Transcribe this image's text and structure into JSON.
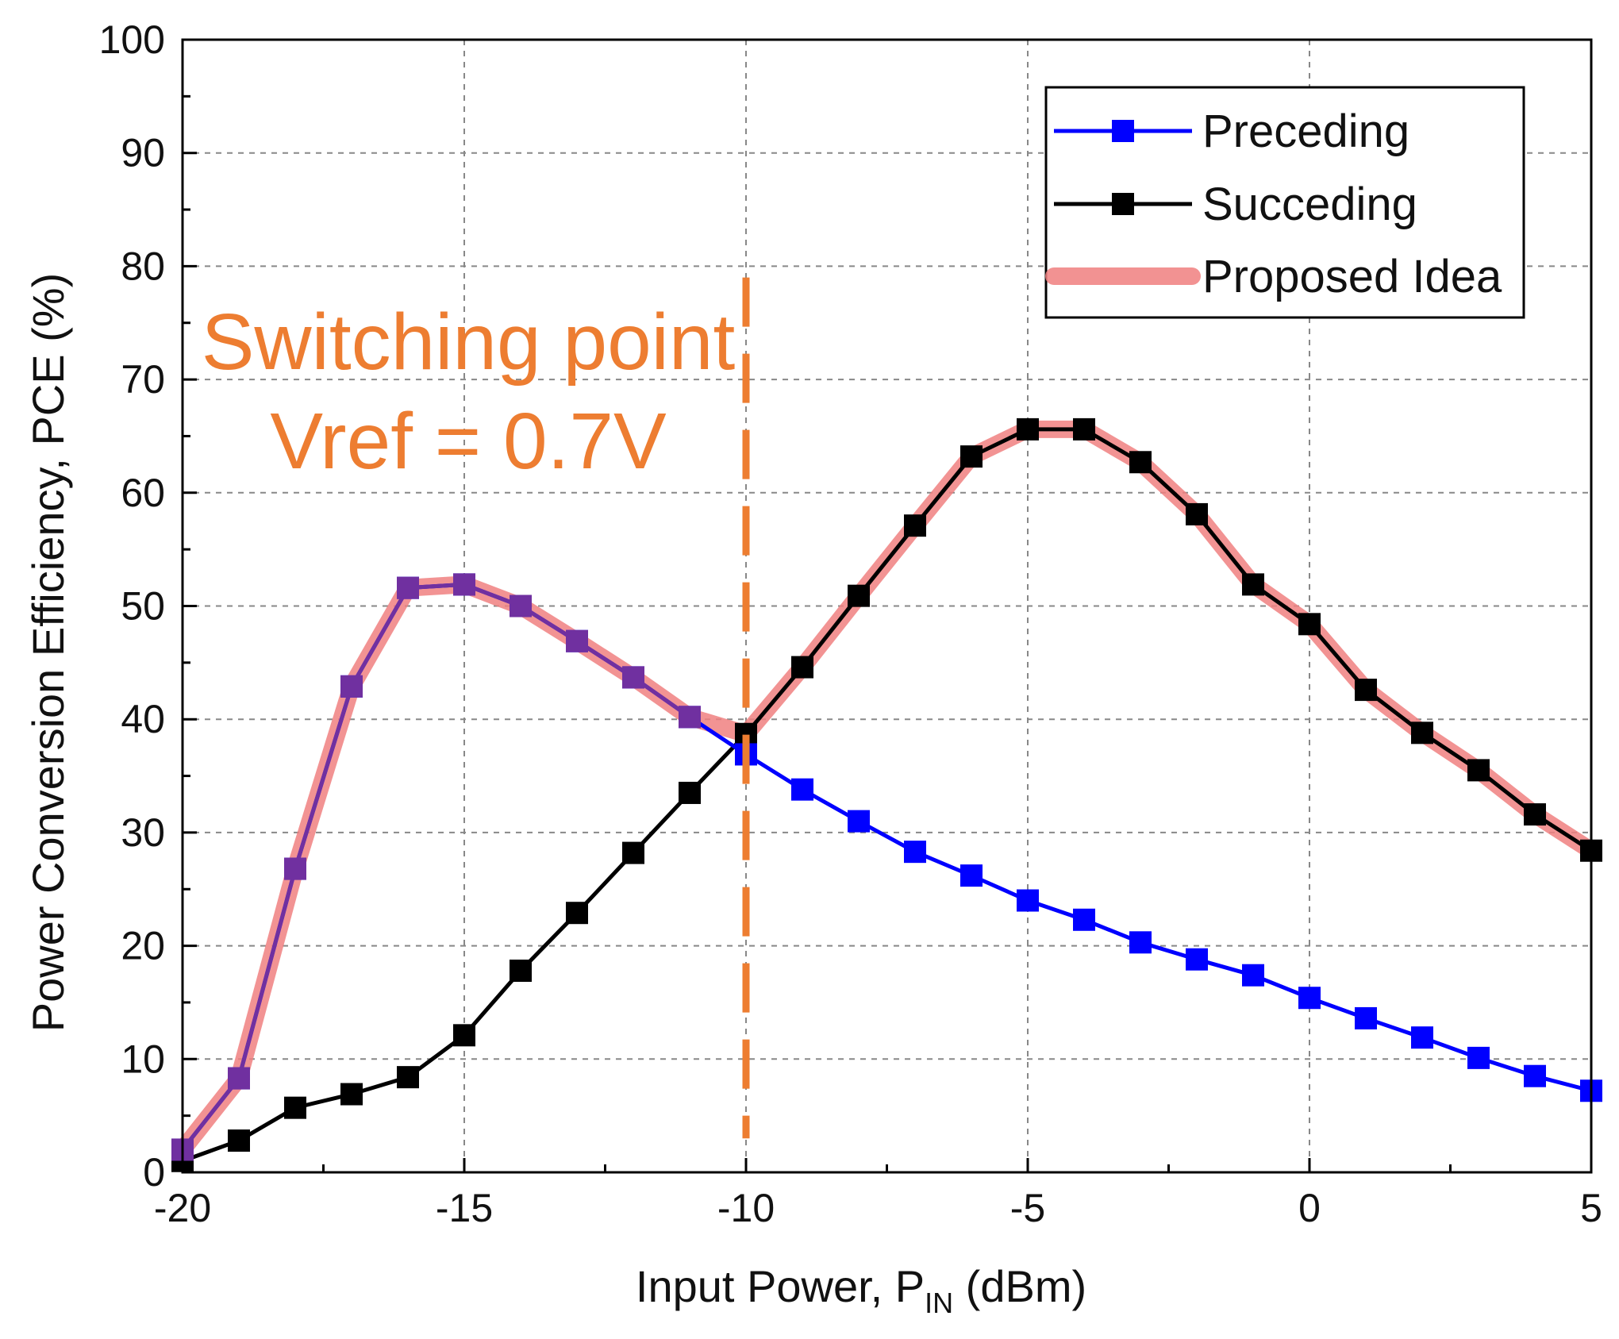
{
  "chart_data": {
    "type": "line",
    "title": "",
    "xlabel": "Input Power, P",
    "xlabel_sub": "IN",
    "xlabel_unit": " (dBm)",
    "ylabel": "Power Conversion Efficiency, PCE (%)",
    "xlim": [
      -20,
      5
    ],
    "ylim": [
      0,
      100
    ],
    "xticks": [
      -20,
      -15,
      -10,
      -5,
      0,
      5
    ],
    "xtick_labels": [
      "-20",
      "-15",
      "-10",
      "-5",
      "0",
      "5"
    ],
    "yticks": [
      0,
      10,
      20,
      30,
      40,
      50,
      60,
      70,
      80,
      90,
      100
    ],
    "ytick_labels": [
      "0",
      "10",
      "20",
      "30",
      "40",
      "50",
      "60",
      "70",
      "80",
      "90",
      "100"
    ],
    "grid": true,
    "legend_position": "top-right",
    "x": [
      -20,
      -19,
      -18,
      -17,
      -16,
      -15,
      -14,
      -13,
      -12,
      -11,
      -10,
      -9,
      -8,
      -7,
      -6,
      -5,
      -4,
      -3,
      -2,
      -1,
      0,
      1,
      2,
      3,
      4,
      5
    ],
    "series": [
      {
        "name": "Preceding",
        "color": "#0000ff",
        "marker": "square",
        "values": [
          2,
          8.3,
          26.8,
          42.9,
          51.6,
          51.9,
          50,
          46.9,
          43.7,
          40.2,
          36.9,
          33.8,
          31,
          28.3,
          26.2,
          24,
          22.3,
          20.3,
          18.8,
          17.4,
          15.4,
          13.6,
          11.9,
          10.1,
          8.5,
          7.2
        ]
      },
      {
        "name": "Succeding",
        "color": "#000000",
        "marker": "square",
        "values": [
          1,
          2.8,
          5.7,
          6.9,
          8.4,
          12.1,
          17.8,
          22.9,
          28.2,
          33.5,
          38.7,
          44.6,
          50.9,
          57.1,
          63.2,
          65.6,
          65.6,
          62.7,
          58.1,
          51.9,
          48.4,
          42.6,
          38.8,
          35.5,
          31.6,
          28.4
        ]
      },
      {
        "name": "Proposed Idea",
        "color": "#f08080",
        "marker": "none",
        "values": [
          2,
          8.3,
          26.8,
          42.9,
          51.6,
          51.9,
          50,
          46.9,
          43.7,
          40.2,
          38.7,
          44.6,
          50.9,
          57.1,
          63.2,
          65.6,
          65.6,
          62.7,
          58.1,
          51.9,
          48.4,
          42.6,
          38.8,
          35.5,
          31.6,
          28.4
        ]
      }
    ],
    "overlay_color": "#7030a0",
    "switching_x": -10,
    "switching_y_range": [
      3,
      79
    ],
    "annotation_color": "#ed7d31",
    "annotation": [
      "Switching point",
      "Vref = 0.7V"
    ]
  }
}
